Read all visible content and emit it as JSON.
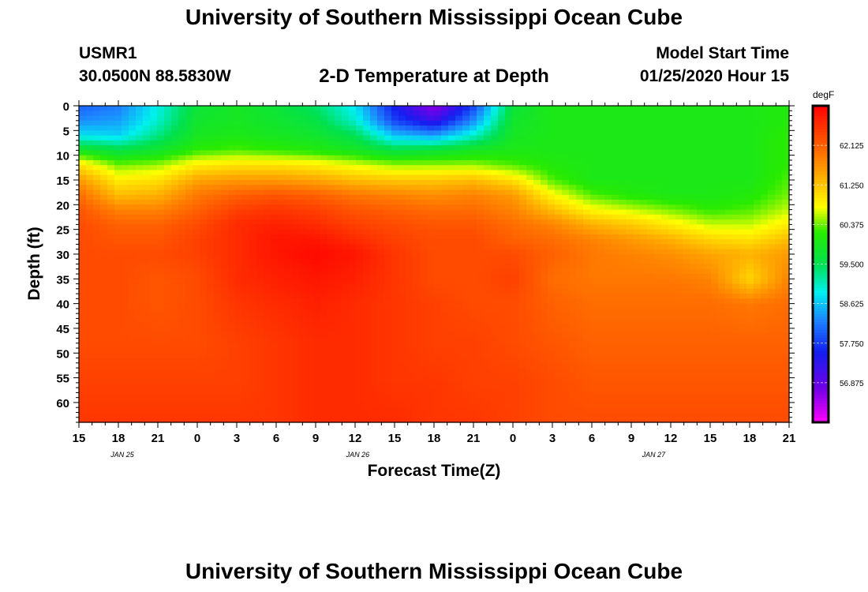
{
  "header": {
    "title": "University of Southern Mississippi Ocean Cube",
    "station_id": "USMR1",
    "station_coords": "30.0500N 88.5830W",
    "plot_title": "2-D Temperature at Depth",
    "model_label": "Model Start Time",
    "model_date": "01/25/2020 Hour 15"
  },
  "footer": {
    "title": "University of Southern Mississippi Ocean Cube"
  },
  "chart_data": {
    "type": "heatmap",
    "title": "2-D Temperature at Depth",
    "xlabel": "Forecast Time(Z)",
    "ylabel": "Depth (ft)",
    "x_ticks": [
      "15",
      "18",
      "21",
      "0",
      "3",
      "6",
      "9",
      "12",
      "15",
      "18",
      "21",
      "0",
      "3",
      "6",
      "9",
      "12",
      "15",
      "18",
      "21"
    ],
    "x_range_hours": [
      0,
      54
    ],
    "day_labels": [
      {
        "label": "JAN 25",
        "hour": 3.3
      },
      {
        "label": "JAN 26",
        "hour": 21.2
      },
      {
        "label": "JAN 27",
        "hour": 43.7
      }
    ],
    "y_ticks": [
      0,
      5,
      10,
      15,
      20,
      25,
      30,
      35,
      40,
      45,
      50,
      55,
      60
    ],
    "ylim": [
      0,
      64
    ],
    "colorbar": {
      "unit": "degF",
      "range": [
        56.0,
        63.0
      ],
      "labels": [
        "62.125",
        "61.250",
        "60.375",
        "59.500",
        "58.625",
        "57.750",
        "56.875"
      ]
    },
    "depths_ft": [
      0,
      3,
      6,
      9,
      12,
      15,
      18,
      21,
      24,
      27,
      30,
      35,
      40,
      48,
      56,
      64
    ],
    "times_h": [
      0,
      3,
      6,
      9,
      12,
      15,
      18,
      21,
      24,
      27,
      30,
      33,
      36,
      39,
      42,
      45,
      48,
      51,
      54
    ],
    "values_degF": [
      [
        58.0,
        58.2,
        58.9,
        59.7,
        59.9,
        59.7,
        59.4,
        58.8,
        57.5,
        56.5,
        57.8,
        59.7,
        60.0,
        60.0,
        60.0,
        60.0,
        60.0,
        60.0,
        60.1
      ],
      [
        58.3,
        58.4,
        59.0,
        59.8,
        59.9,
        59.8,
        59.6,
        59.0,
        57.8,
        57.2,
        58.3,
        59.8,
        60.0,
        60.0,
        60.0,
        60.0,
        60.0,
        60.0,
        60.1
      ],
      [
        58.8,
        58.7,
        59.3,
        59.9,
        60.0,
        59.9,
        59.8,
        59.5,
        58.6,
        58.4,
        59.0,
        59.9,
        60.0,
        60.0,
        60.0,
        60.0,
        60.0,
        60.0,
        60.2
      ],
      [
        59.9,
        59.6,
        59.8,
        60.2,
        60.3,
        60.2,
        60.1,
        59.9,
        59.6,
        59.7,
        59.9,
        60.0,
        60.0,
        60.0,
        60.0,
        60.0,
        60.0,
        60.0,
        60.2
      ],
      [
        61.0,
        60.4,
        60.5,
        60.9,
        61.0,
        61.0,
        60.9,
        60.7,
        60.5,
        60.5,
        60.5,
        60.3,
        60.1,
        60.0,
        60.0,
        60.0,
        60.0,
        60.0,
        60.2
      ],
      [
        61.6,
        60.9,
        61.0,
        61.5,
        61.6,
        61.6,
        61.5,
        61.3,
        61.2,
        61.2,
        61.3,
        61.0,
        60.3,
        60.0,
        60.0,
        60.0,
        60.0,
        60.0,
        60.3
      ],
      [
        62.0,
        61.3,
        61.4,
        61.9,
        62.1,
        62.2,
        62.1,
        61.9,
        61.8,
        61.7,
        61.8,
        61.6,
        60.8,
        60.3,
        60.1,
        60.0,
        60.0,
        60.1,
        60.4
      ],
      [
        62.2,
        61.8,
        61.8,
        62.1,
        62.4,
        62.5,
        62.4,
        62.2,
        62.1,
        62.0,
        62.0,
        61.8,
        61.3,
        60.8,
        60.6,
        60.4,
        60.2,
        60.3,
        60.6
      ],
      [
        62.3,
        62.1,
        62.1,
        62.3,
        62.6,
        62.7,
        62.6,
        62.4,
        62.3,
        62.2,
        62.2,
        62.0,
        61.8,
        61.4,
        61.2,
        60.9,
        60.6,
        60.6,
        60.9
      ],
      [
        62.3,
        62.2,
        62.2,
        62.4,
        62.6,
        62.8,
        62.8,
        62.6,
        62.4,
        62.3,
        62.3,
        62.1,
        62.0,
        61.8,
        61.6,
        61.4,
        61.1,
        61.0,
        61.3
      ],
      [
        62.3,
        62.3,
        62.3,
        62.4,
        62.6,
        62.8,
        62.9,
        62.8,
        62.5,
        62.3,
        62.3,
        62.3,
        62.1,
        61.9,
        61.8,
        61.7,
        61.5,
        61.4,
        61.6
      ],
      [
        62.3,
        62.3,
        62.2,
        62.3,
        62.6,
        62.7,
        62.8,
        62.7,
        62.5,
        62.3,
        62.3,
        62.4,
        62.0,
        61.9,
        61.9,
        61.9,
        61.8,
        61.1,
        61.8
      ],
      [
        62.3,
        62.3,
        62.2,
        62.3,
        62.5,
        62.6,
        62.7,
        62.6,
        62.5,
        62.4,
        62.3,
        62.3,
        62.1,
        62.0,
        62.0,
        62.0,
        62.0,
        61.9,
        62.0
      ],
      [
        62.3,
        62.3,
        62.3,
        62.3,
        62.4,
        62.5,
        62.6,
        62.6,
        62.5,
        62.4,
        62.4,
        62.3,
        62.2,
        62.1,
        62.1,
        62.1,
        62.1,
        62.1,
        62.1
      ],
      [
        62.4,
        62.4,
        62.4,
        62.4,
        62.4,
        62.5,
        62.6,
        62.6,
        62.5,
        62.5,
        62.4,
        62.4,
        62.3,
        62.2,
        62.2,
        62.2,
        62.2,
        62.2,
        62.2
      ],
      [
        62.5,
        62.5,
        62.5,
        62.5,
        62.5,
        62.5,
        62.6,
        62.6,
        62.6,
        62.5,
        62.5,
        62.4,
        62.3,
        62.3,
        62.3,
        62.3,
        62.3,
        62.3,
        62.3
      ]
    ]
  }
}
